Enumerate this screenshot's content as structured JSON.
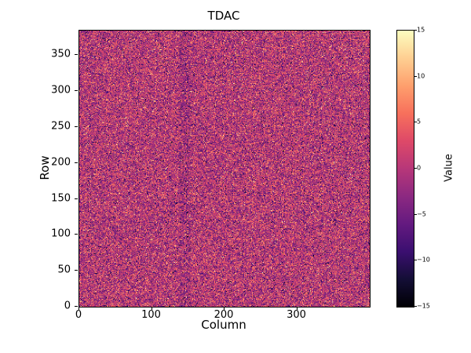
{
  "chart_data": {
    "type": "heatmap",
    "title": "TDAC",
    "xlabel": "Column",
    "ylabel": "Row",
    "ncols": 400,
    "nrows": 384,
    "xlim": [
      0,
      400
    ],
    "ylim": [
      0,
      384
    ],
    "x_ticks": [
      0,
      100,
      200,
      300
    ],
    "y_ticks": [
      0,
      50,
      100,
      150,
      200,
      250,
      300,
      350
    ],
    "grid": false,
    "background": "#ffffff",
    "colorbar": {
      "label": "Value",
      "vmin": -15,
      "vmax": 15,
      "ticks": [
        -15,
        -10,
        -5,
        0,
        5,
        10,
        15
      ],
      "position": "right"
    },
    "colormap": {
      "name": "magma",
      "stops": [
        "#000004",
        "#140e36",
        "#3b0f70",
        "#641a80",
        "#8c2981",
        "#b73779",
        "#de4968",
        "#f7705c",
        "#fe9f6d",
        "#fecf92",
        "#fcfdbf"
      ]
    },
    "data_description": "Per-pixel TDAC tuning values appearing as random speckle noise centered near 0 (mostly magenta/purple with sparse bright orange and dark dots); faint darker vertical band near column 145",
    "noise_model": {
      "distribution": "normal",
      "mean": 0,
      "std": 5.0,
      "clip": [
        -15,
        15
      ],
      "seed": 1234567,
      "bands": [
        {
          "col_start": 138,
          "col_end": 152,
          "offset": -1.2
        }
      ]
    }
  }
}
